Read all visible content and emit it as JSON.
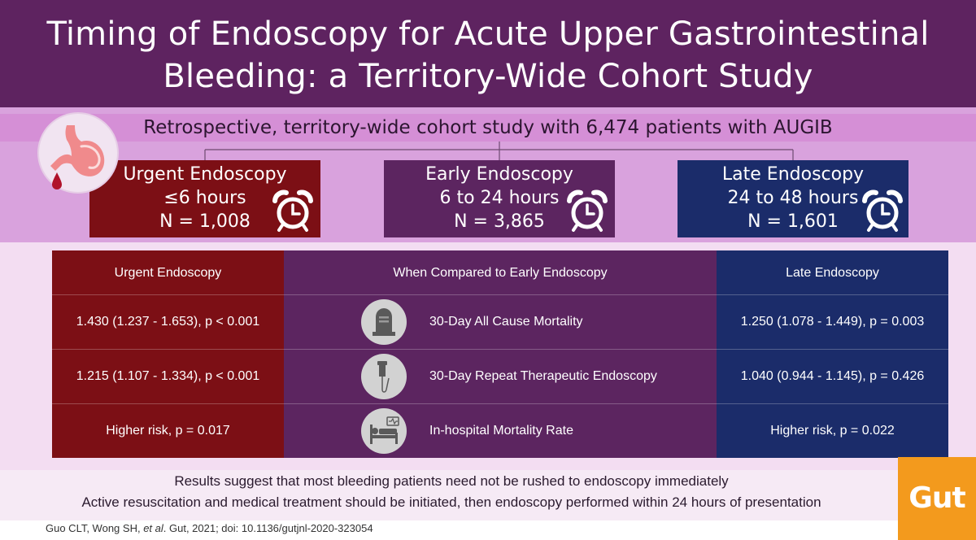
{
  "banner": {
    "title_line1": "Timing of Endoscopy for Acute Upper Gastrointestinal",
    "title_line2": "Bleeding: a Territory-Wide Cohort Study"
  },
  "study": {
    "subtitle": "Retrospective, territory-wide cohort study with 6,474 patients with AUGIB"
  },
  "colors": {
    "banner": "#5e2360",
    "urgent": "#7c0f15",
    "early": "#5c2560",
    "late": "#1b2c6a",
    "logo": "#f39a1d"
  },
  "cohorts": [
    {
      "label": "Urgent Endoscopy",
      "window": "≤6 hours",
      "n": "N = 1,008",
      "icon": "alarm-clock-icon"
    },
    {
      "label": "Early Endoscopy",
      "window": "6 to 24 hours",
      "n": "N = 3,865",
      "icon": "alarm-clock-icon"
    },
    {
      "label": "Late Endoscopy",
      "window": "24 to 48 hours",
      "n": "N = 1,601",
      "icon": "alarm-clock-icon"
    }
  ],
  "table": {
    "headers": {
      "left": "Urgent Endoscopy",
      "middle": "When Compared to Early Endoscopy",
      "right": "Late Endoscopy"
    },
    "rows": [
      {
        "urgent": "1.430 (1.237 - 1.653), p < 0.001",
        "outcome": "30-Day All Cause Mortality",
        "late": "1.250 (1.078 - 1.449), p = 0.003",
        "icon": "tombstone-icon"
      },
      {
        "urgent": "1.215 (1.107 - 1.334), p < 0.001",
        "outcome": "30-Day Repeat Therapeutic Endoscopy",
        "late": "1.040 (0.944 - 1.145), p = 0.426",
        "icon": "endoscope-icon"
      },
      {
        "urgent": "Higher risk, p = 0.017",
        "outcome": "In-hospital Mortality Rate",
        "late": "Higher risk, p = 0.022",
        "icon": "hospital-bed-icon"
      }
    ]
  },
  "conclusions": {
    "line1": "Results suggest that most bleeding patients need not be rushed to endoscopy immediately",
    "line2": "Active resuscitation and medical treatment should be initiated, then endoscopy performed within 24 hours of presentation"
  },
  "citation": {
    "before_italic": "Guo CLT, Wong SH, ",
    "italic": "et al",
    "after_italic": ". Gut, 2021; doi: 10.1136/gutjnl-2020-323054"
  },
  "logo": {
    "text": "Gut"
  }
}
